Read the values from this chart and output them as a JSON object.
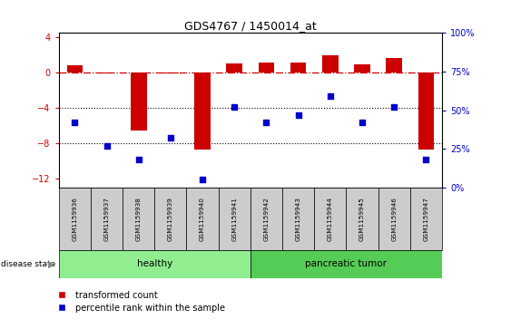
{
  "title": "GDS4767 / 1450014_at",
  "samples": [
    "GSM1159936",
    "GSM1159937",
    "GSM1159938",
    "GSM1159939",
    "GSM1159940",
    "GSM1159941",
    "GSM1159942",
    "GSM1159943",
    "GSM1159944",
    "GSM1159945",
    "GSM1159946",
    "GSM1159947"
  ],
  "red_values": [
    0.8,
    -0.1,
    -6.5,
    -0.1,
    -8.7,
    1.0,
    1.1,
    1.1,
    2.0,
    0.9,
    1.7,
    -8.7
  ],
  "blue_percentile": [
    42,
    27,
    18,
    32,
    5,
    52,
    42,
    47,
    59,
    42,
    52,
    18
  ],
  "ylim_left": [
    -13,
    4.5
  ],
  "ylim_right": [
    0,
    100
  ],
  "yticks_left": [
    4,
    0,
    -4,
    -8,
    -12
  ],
  "yticks_right": [
    100,
    75,
    50,
    25,
    0
  ],
  "n_healthy": 6,
  "n_tumor": 6,
  "healthy_label": "healthy",
  "tumor_label": "pancreatic tumor",
  "disease_state_label": "disease state",
  "legend_red": "transformed count",
  "legend_blue": "percentile rank within the sample",
  "red_color": "#cc0000",
  "blue_color": "#0000cc",
  "healthy_color": "#90ee90",
  "tumor_color": "#55cc55",
  "bg_color": "#cccccc",
  "bar_width": 0.5
}
